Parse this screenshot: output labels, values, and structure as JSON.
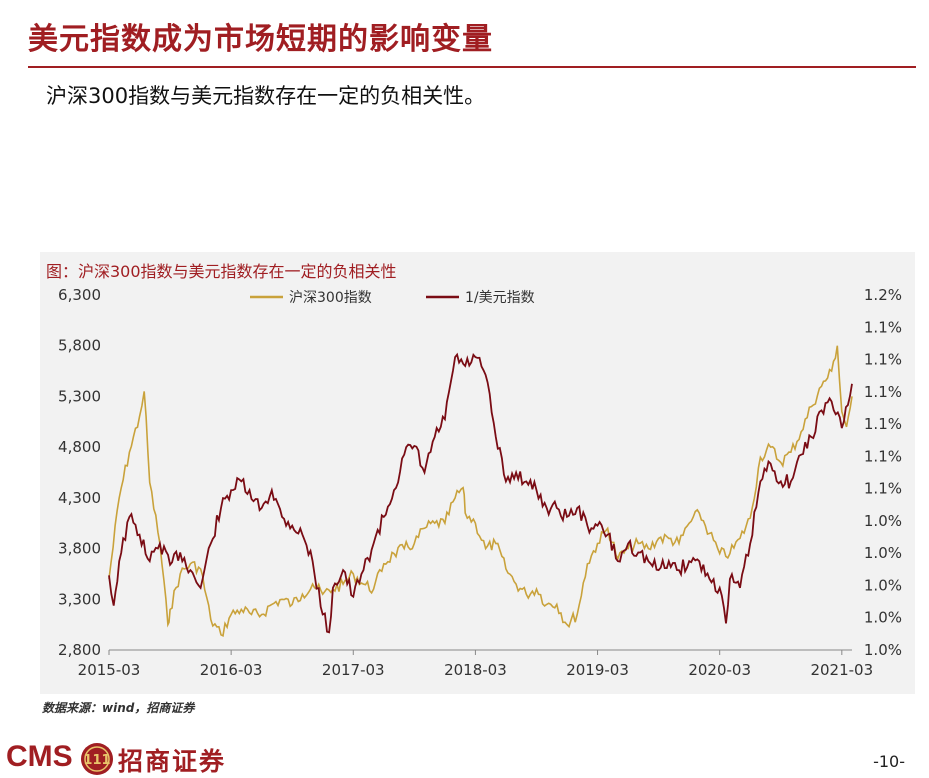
{
  "slide": {
    "title": "美元指数成为市场短期的影响变量",
    "subtitle": "沪深300指数与美元指数存在一定的负相关性。",
    "source": "数据来源：wind，招商证券",
    "page_number": "-10-",
    "logo_text": "CMS",
    "logo_name": "招商证券",
    "logo_badge_text": "111"
  },
  "colors": {
    "accent": "#a01e22",
    "csi300": "#c9a23b",
    "usd_inverse": "#7a0c14",
    "panel": "#f2f2f2"
  },
  "chart_data": {
    "type": "line",
    "title": "图：沪深300指数与美元指数存在一定的负相关性",
    "x_tick_labels": [
      "2015-03",
      "2016-03",
      "2017-03",
      "2018-03",
      "2019-03",
      "2020-03",
      "2021-03"
    ],
    "x_range": [
      "2015-03",
      "2021-04"
    ],
    "y_left": {
      "ylim": [
        2800,
        6300
      ],
      "tick_labels": [
        "2,800",
        "3,300",
        "3,800",
        "4,300",
        "4,800",
        "5,300",
        "5,800",
        "6,300"
      ]
    },
    "y_right": {
      "ylim": [
        1.0,
        1.2
      ],
      "tick_labels": [
        "1.0%",
        "1.0%",
        "1.0%",
        "1.0%",
        "1.0%",
        "1.1%",
        "1.1%",
        "1.1%",
        "1.1%",
        "1.1%",
        "1.1%",
        "1.2%"
      ]
    },
    "legend": "top-center",
    "grid": false,
    "series": [
      {
        "name": "沪深300指数",
        "axis": "left",
        "x": [
          "2015-03",
          "2015-04",
          "2015-05",
          "2015-06",
          "2015-06-15",
          "2015-07",
          "2015-08",
          "2015-08-25",
          "2015-09",
          "2015-10",
          "2015-11",
          "2015-12",
          "2016-01",
          "2016-02",
          "2016-03",
          "2016-04",
          "2016-05",
          "2016-06",
          "2016-07",
          "2016-08",
          "2016-09",
          "2016-10",
          "2016-11",
          "2016-12",
          "2017-01",
          "2017-02",
          "2017-03",
          "2017-04",
          "2017-05",
          "2017-06",
          "2017-07",
          "2017-08",
          "2017-09",
          "2017-10",
          "2017-11",
          "2017-12",
          "2018-01",
          "2018-01-25",
          "2018-02",
          "2018-03",
          "2018-04",
          "2018-05",
          "2018-06",
          "2018-07",
          "2018-08",
          "2018-09",
          "2018-10",
          "2018-11",
          "2018-12",
          "2019-01",
          "2019-02",
          "2019-03",
          "2019-04",
          "2019-05",
          "2019-06",
          "2019-07",
          "2019-08",
          "2019-09",
          "2019-10",
          "2019-11",
          "2019-12",
          "2020-01",
          "2020-02",
          "2020-03",
          "2020-04",
          "2020-05",
          "2020-06",
          "2020-07",
          "2020-08",
          "2020-09",
          "2020-10",
          "2020-11",
          "2020-12",
          "2021-01",
          "2021-02",
          "2021-02-18",
          "2021-03",
          "2021-03-15",
          "2021-04"
        ],
        "values": [
          3500,
          4300,
          4750,
          5100,
          5350,
          4450,
          3850,
          3050,
          3200,
          3550,
          3650,
          3600,
          3100,
          2950,
          3150,
          3200,
          3150,
          3150,
          3250,
          3300,
          3250,
          3350,
          3450,
          3350,
          3400,
          3450,
          3550,
          3450,
          3400,
          3650,
          3750,
          3800,
          3850,
          4000,
          4050,
          4050,
          4300,
          4400,
          4150,
          4050,
          3800,
          3850,
          3600,
          3450,
          3350,
          3400,
          3250,
          3250,
          3050,
          3150,
          3650,
          3850,
          4000,
          3700,
          3800,
          3850,
          3800,
          3900,
          3900,
          3850,
          4050,
          4150,
          3950,
          3750,
          3750,
          3900,
          4100,
          4700,
          4800,
          4650,
          4750,
          4950,
          5200,
          5400,
          5550,
          5800,
          5150,
          5000,
          5300
        ]
      },
      {
        "name": "1/美元指数",
        "axis": "right",
        "x": [
          "2015-03",
          "2015-03-15",
          "2015-04",
          "2015-05",
          "2015-06",
          "2015-07",
          "2015-08",
          "2015-09",
          "2015-10",
          "2015-11",
          "2015-12",
          "2016-01",
          "2016-02",
          "2016-03",
          "2016-04",
          "2016-05",
          "2016-06",
          "2016-07",
          "2016-08",
          "2016-09",
          "2016-10",
          "2016-11",
          "2016-12",
          "2016-12-20",
          "2017-01",
          "2017-02",
          "2017-03",
          "2017-04",
          "2017-05",
          "2017-06",
          "2017-07",
          "2017-08",
          "2017-09",
          "2017-10",
          "2017-11",
          "2017-12",
          "2018-01",
          "2018-02",
          "2018-03",
          "2018-04",
          "2018-05",
          "2018-06",
          "2018-07",
          "2018-08",
          "2018-09",
          "2018-10",
          "2018-11",
          "2018-12",
          "2019-01",
          "2019-02",
          "2019-03",
          "2019-04",
          "2019-05",
          "2019-06",
          "2019-07",
          "2019-08",
          "2019-09",
          "2019-10",
          "2019-11",
          "2019-12",
          "2020-01",
          "2020-02",
          "2020-03",
          "2020-03-20",
          "2020-04",
          "2020-05",
          "2020-06",
          "2020-07",
          "2020-08",
          "2020-09",
          "2020-10",
          "2020-11",
          "2020-12",
          "2021-01",
          "2021-02",
          "2021-03",
          "2021-04"
        ],
        "values": [
          1.042,
          1.025,
          1.05,
          1.075,
          1.065,
          1.05,
          1.06,
          1.048,
          1.055,
          1.045,
          1.035,
          1.06,
          1.08,
          1.09,
          1.095,
          1.085,
          1.08,
          1.09,
          1.075,
          1.07,
          1.065,
          1.05,
          1.02,
          1.01,
          1.035,
          1.045,
          1.03,
          1.045,
          1.06,
          1.075,
          1.09,
          1.11,
          1.115,
          1.1,
          1.12,
          1.13,
          1.165,
          1.16,
          1.165,
          1.155,
          1.12,
          1.095,
          1.1,
          1.095,
          1.09,
          1.08,
          1.08,
          1.075,
          1.08,
          1.07,
          1.07,
          1.065,
          1.05,
          1.06,
          1.055,
          1.05,
          1.045,
          1.05,
          1.045,
          1.05,
          1.05,
          1.04,
          1.035,
          1.015,
          1.04,
          1.035,
          1.06,
          1.095,
          1.105,
          1.095,
          1.095,
          1.11,
          1.12,
          1.135,
          1.14,
          1.125,
          1.15
        ]
      }
    ]
  }
}
